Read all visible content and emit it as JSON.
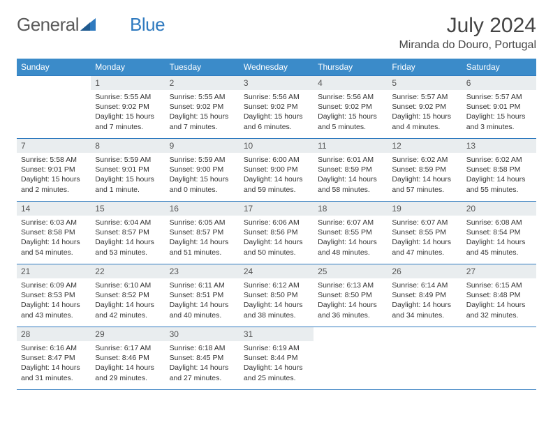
{
  "brand": {
    "part1": "General",
    "part2": "Blue"
  },
  "title": "July 2024",
  "location": "Miranda do Douro, Portugal",
  "colors": {
    "header_bg": "#3b8bc9",
    "header_text": "#ffffff",
    "border": "#2f7abf",
    "daynum_bg": "#e9edef",
    "body_bg": "#ffffff",
    "text": "#333333",
    "logo_gray": "#5a5a5a",
    "logo_blue": "#2f7abf"
  },
  "typography": {
    "title_fontsize": 30,
    "location_fontsize": 16,
    "dayheader_fontsize": 12,
    "daynum_fontsize": 12,
    "cell_fontsize": 10.5
  },
  "day_headers": [
    "Sunday",
    "Monday",
    "Tuesday",
    "Wednesday",
    "Thursday",
    "Friday",
    "Saturday"
  ],
  "weeks": [
    [
      null,
      {
        "n": "1",
        "sunrise": "5:55 AM",
        "sunset": "9:02 PM",
        "daylight": "15 hours and 7 minutes."
      },
      {
        "n": "2",
        "sunrise": "5:55 AM",
        "sunset": "9:02 PM",
        "daylight": "15 hours and 7 minutes."
      },
      {
        "n": "3",
        "sunrise": "5:56 AM",
        "sunset": "9:02 PM",
        "daylight": "15 hours and 6 minutes."
      },
      {
        "n": "4",
        "sunrise": "5:56 AM",
        "sunset": "9:02 PM",
        "daylight": "15 hours and 5 minutes."
      },
      {
        "n": "5",
        "sunrise": "5:57 AM",
        "sunset": "9:02 PM",
        "daylight": "15 hours and 4 minutes."
      },
      {
        "n": "6",
        "sunrise": "5:57 AM",
        "sunset": "9:01 PM",
        "daylight": "15 hours and 3 minutes."
      }
    ],
    [
      {
        "n": "7",
        "sunrise": "5:58 AM",
        "sunset": "9:01 PM",
        "daylight": "15 hours and 2 minutes."
      },
      {
        "n": "8",
        "sunrise": "5:59 AM",
        "sunset": "9:01 PM",
        "daylight": "15 hours and 1 minute."
      },
      {
        "n": "9",
        "sunrise": "5:59 AM",
        "sunset": "9:00 PM",
        "daylight": "15 hours and 0 minutes."
      },
      {
        "n": "10",
        "sunrise": "6:00 AM",
        "sunset": "9:00 PM",
        "daylight": "14 hours and 59 minutes."
      },
      {
        "n": "11",
        "sunrise": "6:01 AM",
        "sunset": "8:59 PM",
        "daylight": "14 hours and 58 minutes."
      },
      {
        "n": "12",
        "sunrise": "6:02 AM",
        "sunset": "8:59 PM",
        "daylight": "14 hours and 57 minutes."
      },
      {
        "n": "13",
        "sunrise": "6:02 AM",
        "sunset": "8:58 PM",
        "daylight": "14 hours and 55 minutes."
      }
    ],
    [
      {
        "n": "14",
        "sunrise": "6:03 AM",
        "sunset": "8:58 PM",
        "daylight": "14 hours and 54 minutes."
      },
      {
        "n": "15",
        "sunrise": "6:04 AM",
        "sunset": "8:57 PM",
        "daylight": "14 hours and 53 minutes."
      },
      {
        "n": "16",
        "sunrise": "6:05 AM",
        "sunset": "8:57 PM",
        "daylight": "14 hours and 51 minutes."
      },
      {
        "n": "17",
        "sunrise": "6:06 AM",
        "sunset": "8:56 PM",
        "daylight": "14 hours and 50 minutes."
      },
      {
        "n": "18",
        "sunrise": "6:07 AM",
        "sunset": "8:55 PM",
        "daylight": "14 hours and 48 minutes."
      },
      {
        "n": "19",
        "sunrise": "6:07 AM",
        "sunset": "8:55 PM",
        "daylight": "14 hours and 47 minutes."
      },
      {
        "n": "20",
        "sunrise": "6:08 AM",
        "sunset": "8:54 PM",
        "daylight": "14 hours and 45 minutes."
      }
    ],
    [
      {
        "n": "21",
        "sunrise": "6:09 AM",
        "sunset": "8:53 PM",
        "daylight": "14 hours and 43 minutes."
      },
      {
        "n": "22",
        "sunrise": "6:10 AM",
        "sunset": "8:52 PM",
        "daylight": "14 hours and 42 minutes."
      },
      {
        "n": "23",
        "sunrise": "6:11 AM",
        "sunset": "8:51 PM",
        "daylight": "14 hours and 40 minutes."
      },
      {
        "n": "24",
        "sunrise": "6:12 AM",
        "sunset": "8:50 PM",
        "daylight": "14 hours and 38 minutes."
      },
      {
        "n": "25",
        "sunrise": "6:13 AM",
        "sunset": "8:50 PM",
        "daylight": "14 hours and 36 minutes."
      },
      {
        "n": "26",
        "sunrise": "6:14 AM",
        "sunset": "8:49 PM",
        "daylight": "14 hours and 34 minutes."
      },
      {
        "n": "27",
        "sunrise": "6:15 AM",
        "sunset": "8:48 PM",
        "daylight": "14 hours and 32 minutes."
      }
    ],
    [
      {
        "n": "28",
        "sunrise": "6:16 AM",
        "sunset": "8:47 PM",
        "daylight": "14 hours and 31 minutes."
      },
      {
        "n": "29",
        "sunrise": "6:17 AM",
        "sunset": "8:46 PM",
        "daylight": "14 hours and 29 minutes."
      },
      {
        "n": "30",
        "sunrise": "6:18 AM",
        "sunset": "8:45 PM",
        "daylight": "14 hours and 27 minutes."
      },
      {
        "n": "31",
        "sunrise": "6:19 AM",
        "sunset": "8:44 PM",
        "daylight": "14 hours and 25 minutes."
      },
      null,
      null,
      null
    ]
  ],
  "labels": {
    "sunrise": "Sunrise: ",
    "sunset": "Sunset: ",
    "daylight": "Daylight: "
  }
}
